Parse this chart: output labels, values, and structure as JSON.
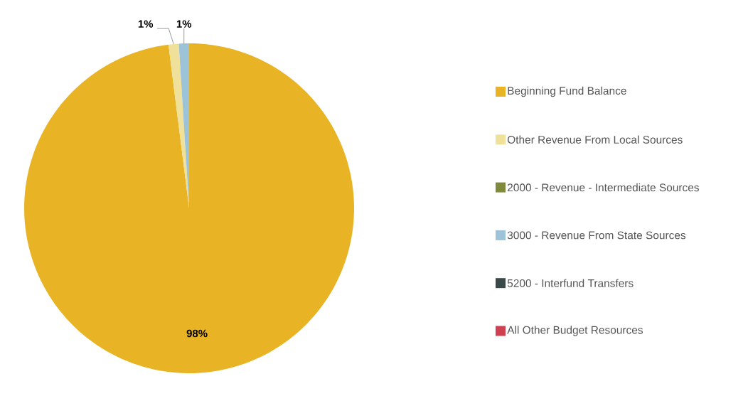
{
  "chart_data": {
    "type": "pie",
    "categories": [
      "Beginning Fund Balance",
      "Other Revenue From Local Sources",
      "2000 - Revenue - Intermediate Sources",
      "3000 - Revenue From State Sources",
      "5200 - Interfund Transfers",
      "All Other Budget Resources"
    ],
    "values": [
      98,
      1,
      0,
      1,
      0,
      0
    ],
    "colors": [
      "#e8b325",
      "#efe09a",
      "#7f8a3a",
      "#9cc3d8",
      "#3a4a4a",
      "#d04050"
    ],
    "value_labels": [
      "98%",
      "1%",
      null,
      "1%",
      null,
      null
    ],
    "legend": "right"
  }
}
